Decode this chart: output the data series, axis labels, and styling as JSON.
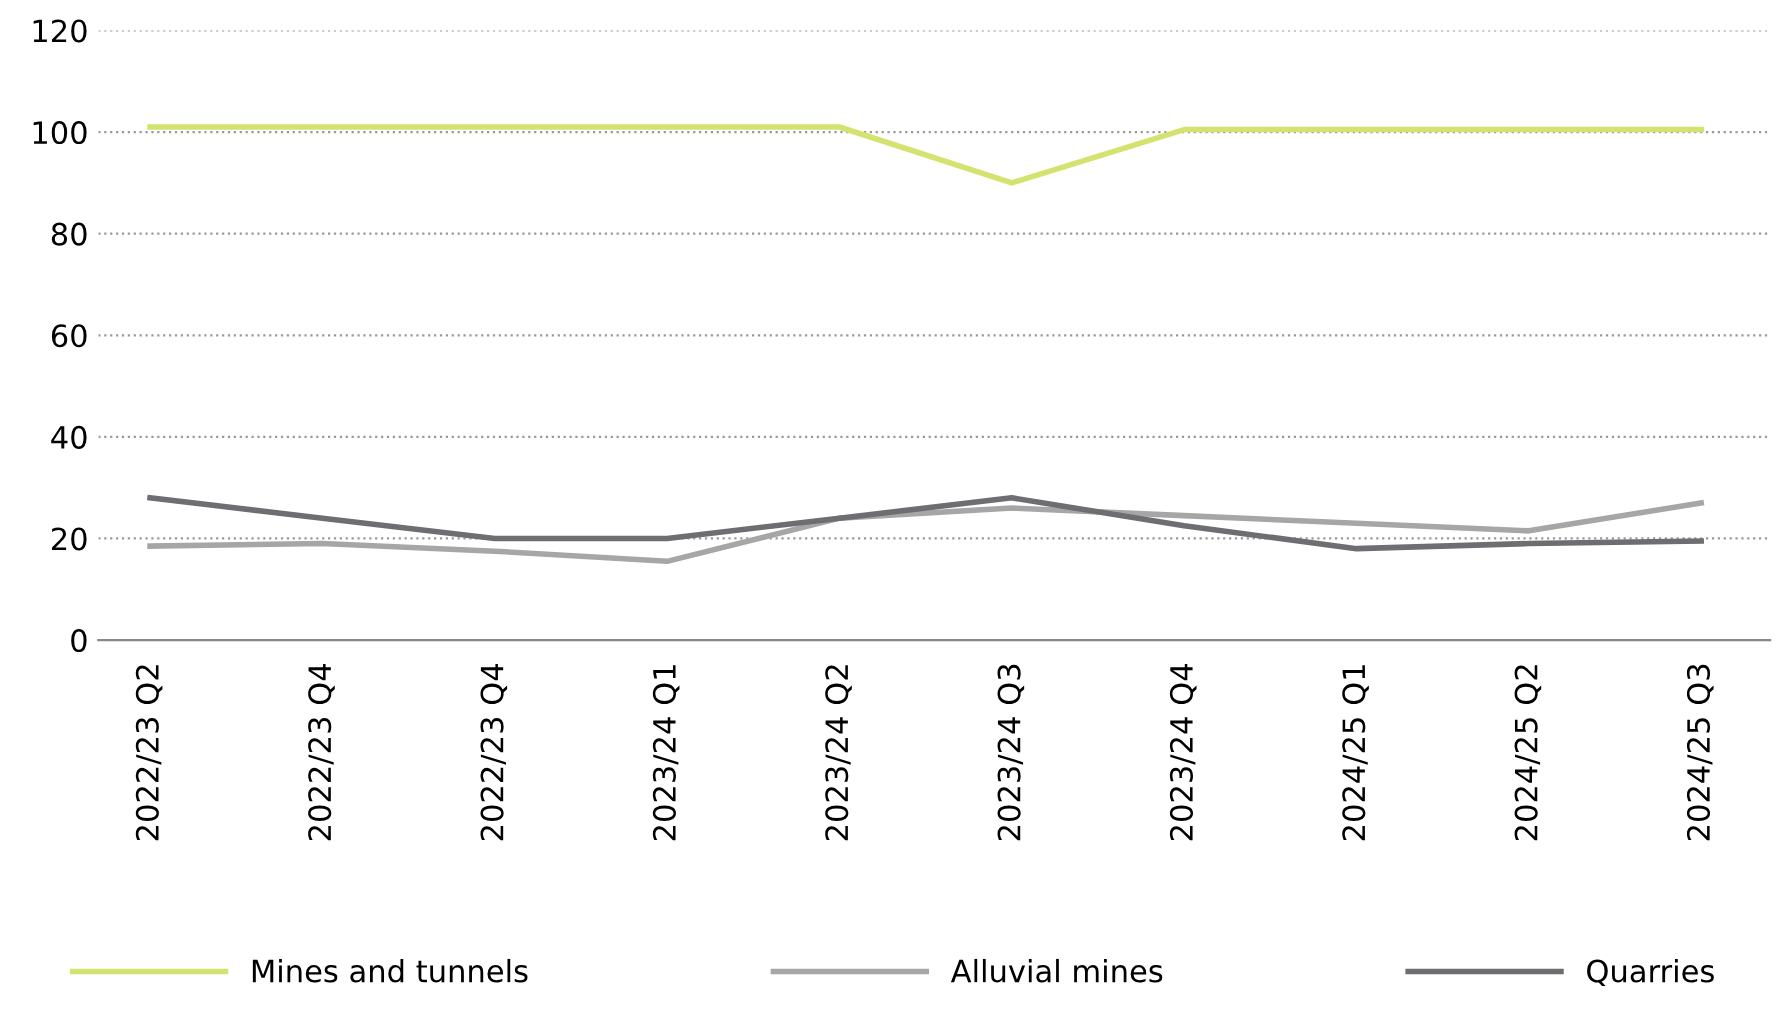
{
  "chart_data": {
    "type": "line",
    "categories": [
      "2022/23 Q2",
      "2022/23 Q4",
      "2022/23 Q4",
      "2023/24 Q1",
      "2023/24 Q2",
      "2023/24 Q3",
      "2023/24 Q4",
      "2024/25 Q1",
      "2024/25 Q2",
      "2024/25 Q3"
    ],
    "series": [
      {
        "name": "Mines and tunnels",
        "color": "#d4e36f",
        "values": [
          101,
          101,
          101,
          101,
          101,
          90,
          100.5,
          100.5,
          100.5,
          100.5
        ]
      },
      {
        "name": "Alluvial mines",
        "color": "#a6a6a6",
        "values": [
          18.5,
          19,
          17.5,
          15.5,
          24,
          26,
          24.5,
          23,
          21.5,
          27
        ]
      },
      {
        "name": "Quarries",
        "color": "#6d6e71",
        "values": [
          28,
          24,
          20,
          20,
          24,
          28,
          22.5,
          18,
          19,
          19.5
        ]
      }
    ],
    "ylim": [
      0,
      120
    ],
    "yticks": [
      0,
      20,
      40,
      60,
      80,
      100,
      120
    ],
    "grid": "y",
    "legend": "bottom",
    "marker": "none",
    "line_style": "solid"
  }
}
